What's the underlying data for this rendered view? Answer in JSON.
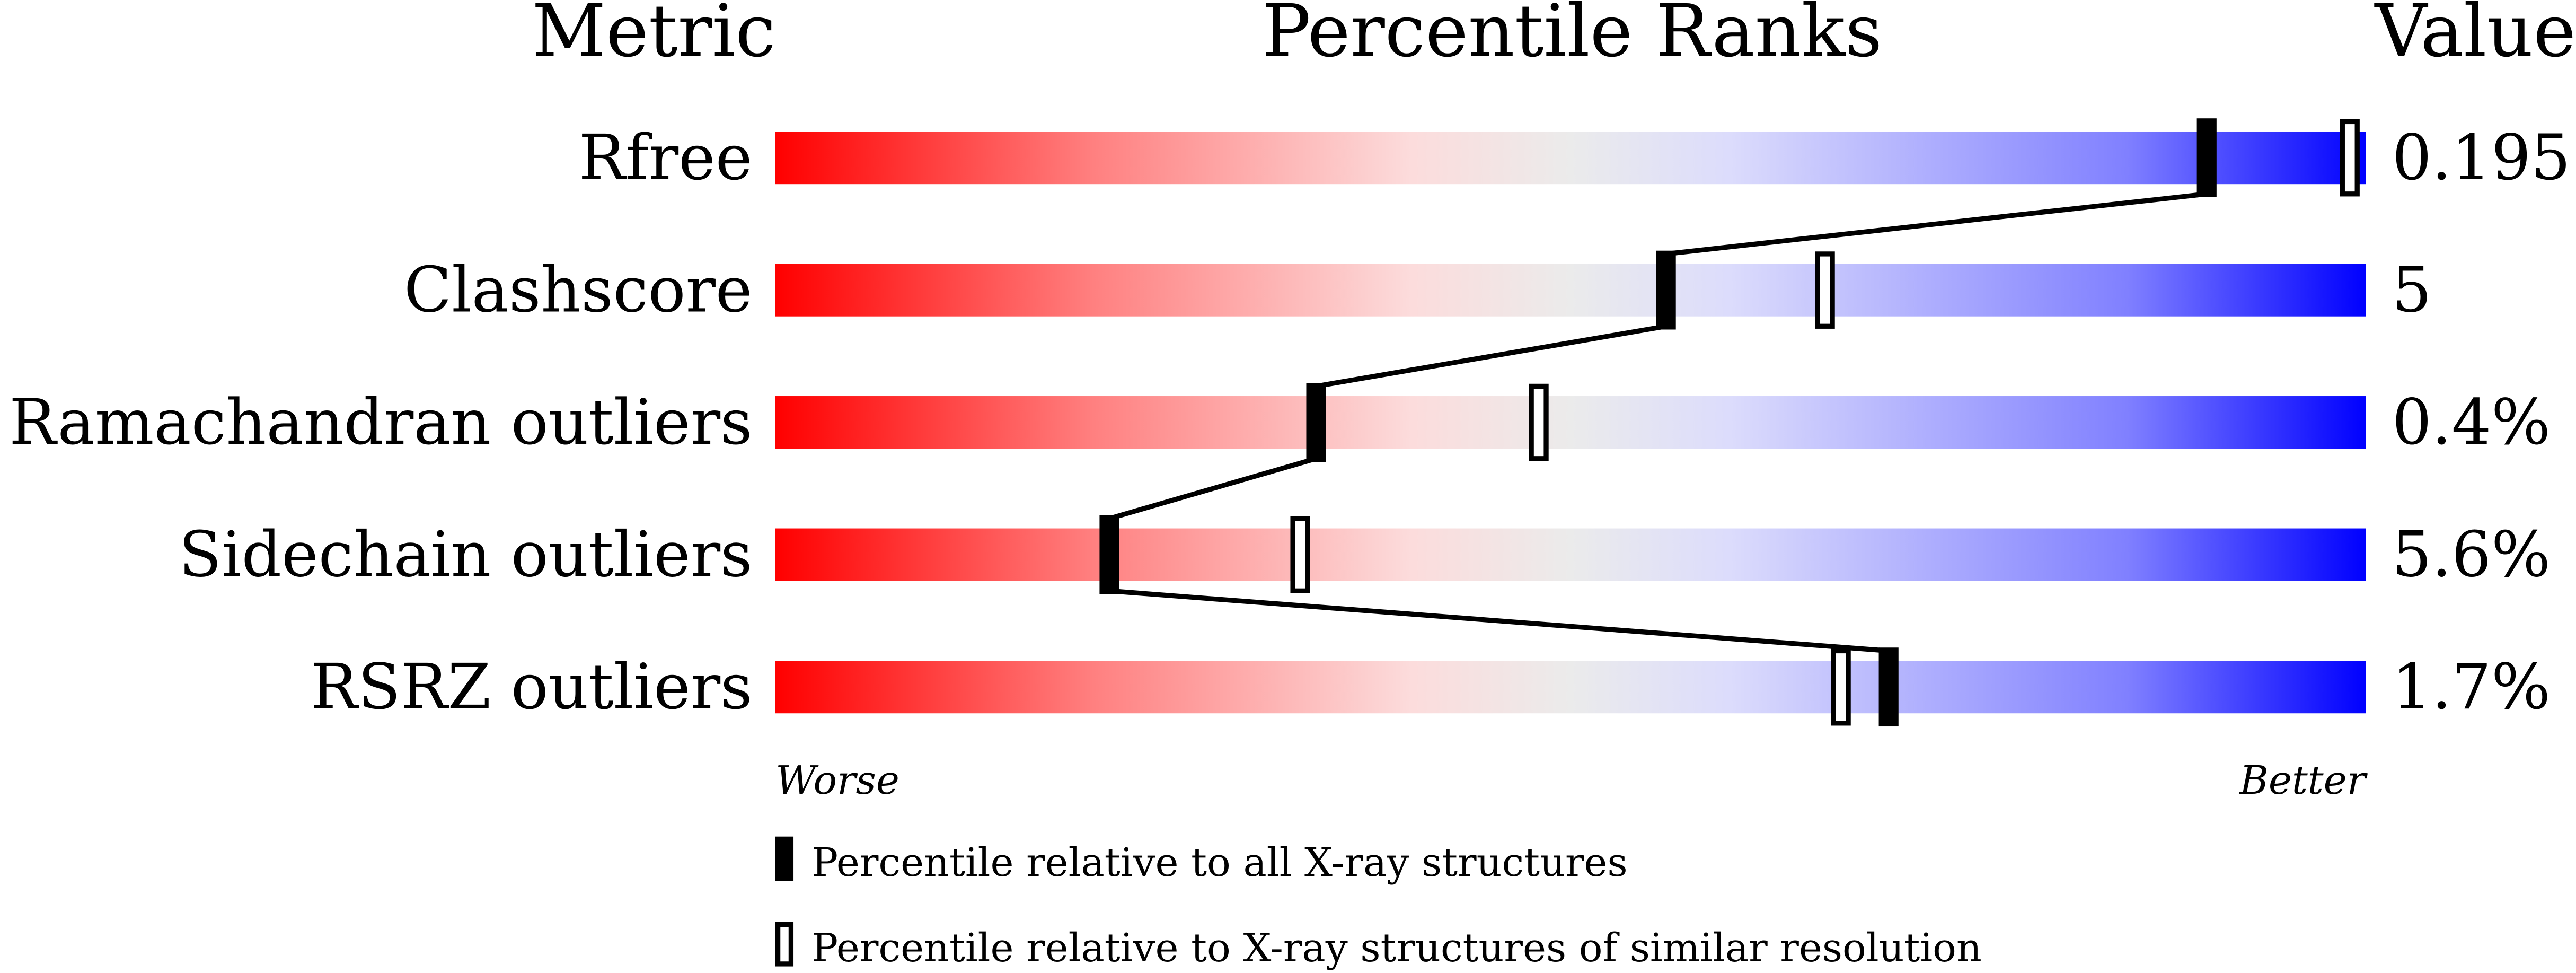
{
  "chart_data": {
    "type": "percentile-bars",
    "headers": {
      "metric": "Metric",
      "ranks": "Percentile Ranks",
      "value": "Value"
    },
    "axis": {
      "min": 0,
      "max": 100,
      "left_label": "Worse",
      "right_label": "Better"
    },
    "gradient_colors": [
      "#ff0000",
      "#ff8080",
      "#fcdcdc",
      "#ebebeb",
      "#dcdcfc",
      "#8080ff",
      "#0000ff"
    ],
    "metrics": [
      {
        "name": "Rfree",
        "value": "0.195",
        "percentile_all": 90,
        "percentile_similar": 99
      },
      {
        "name": "Clashscore",
        "value": "5",
        "percentile_all": 56,
        "percentile_similar": 66
      },
      {
        "name": "Ramachandran outliers",
        "value": "0.4%",
        "percentile_all": 34,
        "percentile_similar": 48
      },
      {
        "name": "Sidechain outliers",
        "value": "5.6%",
        "percentile_all": 21,
        "percentile_similar": 33
      },
      {
        "name": "RSRZ outliers",
        "value": "1.7%",
        "percentile_all": 70,
        "percentile_similar": 67
      }
    ],
    "legend": {
      "filled": "Percentile relative to all X-ray structures",
      "open": "Percentile relative to X-ray structures of similar resolution"
    }
  }
}
